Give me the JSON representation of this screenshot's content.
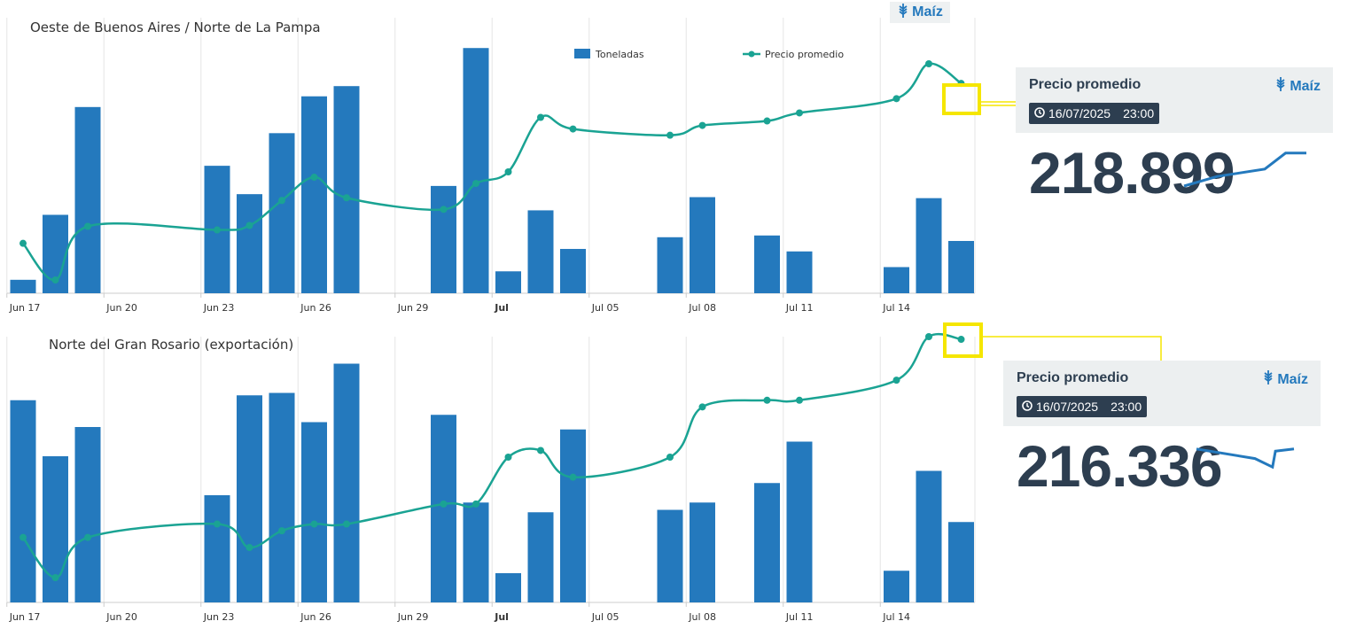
{
  "top_badge": {
    "product": "Maíz",
    "icon": "wheat-icon"
  },
  "legend": {
    "bars": "Toneladas",
    "line": "Precio promedio"
  },
  "colors": {
    "bars": "#2479bd",
    "line": "#1aa393",
    "highlight": "#f5e600",
    "card_bg": "#eceff0",
    "card_text": "#2d3e50"
  },
  "cards": [
    {
      "title": "Precio promedio",
      "product": "Maíz",
      "date": "16/07/2025",
      "time": "23:00",
      "value": "218.899",
      "sparkline": [
        0,
        0.45,
        0.8,
        1.55,
        1.55
      ]
    },
    {
      "title": "Precio promedio",
      "product": "Maíz",
      "date": "16/07/2025",
      "time": "23:00",
      "value": "216.336",
      "sparkline": [
        1.3,
        0.85,
        0.45,
        1.2,
        1.3
      ]
    }
  ],
  "chart_data": [
    {
      "type": "bar+line",
      "title": "Oeste de Buenos Aires / Norte de La Pampa",
      "legend_position": "top",
      "grid": true,
      "x_tick_labels": [
        "Jun 17",
        "Jun 20",
        "Jun 23",
        "Jun 26",
        "Jun 29",
        "Jul",
        "Jul 05",
        "Jul 08",
        "Jul 11",
        "Jul 14"
      ],
      "x_tick_days": [
        0,
        3,
        6,
        9,
        12,
        15,
        18,
        21,
        24,
        27
      ],
      "bold_ticks": [
        "Jul"
      ],
      "series": [
        {
          "name": "Toneladas",
          "type": "bar",
          "x": [
            0,
            1,
            2,
            6,
            7,
            8,
            9,
            10,
            13,
            14,
            15,
            16,
            17,
            20,
            21,
            23,
            24,
            27,
            28,
            29
          ],
          "values": [
            5.4,
            31.5,
            74.8,
            51.2,
            39.8,
            64.3,
            79.1,
            83.2,
            43.1,
            98.5,
            8.8,
            33.3,
            17.8,
            22.5,
            38.6,
            23.2,
            16.8,
            10.5,
            38.2,
            21.0
          ]
        },
        {
          "name": "Precio promedio",
          "type": "line",
          "x": [
            0,
            1,
            2,
            6,
            7,
            8,
            9,
            10,
            13,
            14,
            15,
            16,
            17,
            20,
            21,
            23,
            24,
            27,
            28,
            29
          ],
          "values": [
            5.0,
            0.9,
            6.9,
            6.5,
            7.0,
            9.8,
            12.4,
            10.1,
            8.8,
            11.7,
            13.0,
            19.1,
            17.8,
            17.1,
            18.2,
            18.7,
            19.6,
            21.2,
            25.1,
            22.9
          ]
        }
      ]
    },
    {
      "type": "bar+line",
      "title": "Norte del Gran Rosario (exportación)",
      "legend_position": "top",
      "grid": true,
      "x_tick_labels": [
        "Jun 17",
        "Jun 20",
        "Jun 23",
        "Jun 26",
        "Jun 29",
        "Jul",
        "Jul 05",
        "Jul 08",
        "Jul 11",
        "Jul 14"
      ],
      "x_tick_days": [
        0,
        3,
        6,
        9,
        12,
        15,
        18,
        21,
        24,
        27
      ],
      "bold_ticks": [
        "Jul"
      ],
      "series": [
        {
          "name": "Toneladas",
          "type": "bar",
          "x": [
            0,
            1,
            2,
            6,
            7,
            8,
            9,
            10,
            13,
            14,
            15,
            16,
            17,
            20,
            21,
            23,
            24,
            27,
            28,
            29
          ],
          "values": [
            83.0,
            60.0,
            72.0,
            44.0,
            85.0,
            86.0,
            74.0,
            98.0,
            77.0,
            41.0,
            12.0,
            37.0,
            71.0,
            38.0,
            41.0,
            49.0,
            66.0,
            13.0,
            54.0,
            33.0
          ]
        },
        {
          "name": "Precio promedio",
          "type": "line",
          "x": [
            0,
            1,
            2,
            6,
            7,
            8,
            9,
            10,
            13,
            14,
            15,
            16,
            17,
            20,
            21,
            23,
            24,
            27,
            28,
            29
          ],
          "values": [
            10.0,
            4.0,
            10.0,
            12.0,
            8.5,
            11.0,
            12.0,
            12.0,
            15.0,
            15.0,
            22.0,
            23.0,
            19.0,
            22.0,
            29.5,
            30.5,
            30.5,
            33.5,
            40.0,
            39.6
          ]
        }
      ]
    }
  ]
}
